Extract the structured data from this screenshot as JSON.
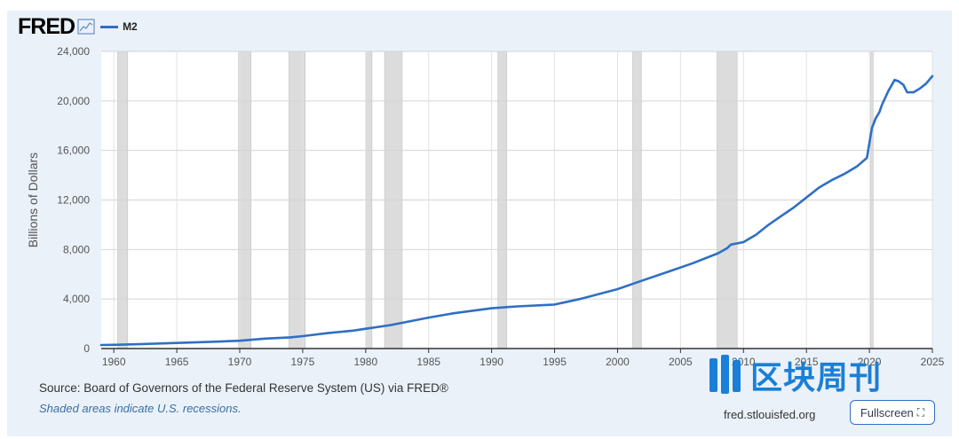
{
  "header": {
    "brand": "FRED",
    "chart_icon": "line-chart-icon",
    "legend_label": "M2",
    "legend_color": "#2f6fc4"
  },
  "footer": {
    "source": "Source: Board of Governors of the Federal Reserve System (US) via FRED®",
    "note": "Shaded areas indicate U.S. recessions.",
    "site": "fred.stlouisfed.org",
    "fullscreen_label": "Fullscreen",
    "fullscreen_icon": "fullscreen-icon"
  },
  "watermark": {
    "text": "区块周刊",
    "icon": "watermark-logo-icon",
    "color": "#1a7fd6"
  },
  "chart_data": {
    "type": "line",
    "title": "",
    "xlabel": "",
    "ylabel": "Billions of Dollars",
    "xlim": [
      1959,
      2025
    ],
    "ylim": [
      0,
      24000
    ],
    "grid": true,
    "x_ticks": [
      1960,
      1965,
      1970,
      1975,
      1980,
      1985,
      1990,
      1995,
      2000,
      2005,
      2010,
      2015,
      2020,
      2025
    ],
    "y_ticks": [
      0,
      4000,
      8000,
      12000,
      16000,
      20000,
      24000
    ],
    "y_tick_labels": [
      "0",
      "4,000",
      "8,000",
      "12,000",
      "16,000",
      "20,000",
      "24,000"
    ],
    "recessions": [
      [
        1960.3,
        1961.1
      ],
      [
        1969.9,
        1970.9
      ],
      [
        1973.9,
        1975.2
      ],
      [
        1980.0,
        1980.5
      ],
      [
        1981.5,
        1982.9
      ],
      [
        1990.5,
        1991.2
      ],
      [
        2001.2,
        2001.9
      ],
      [
        2007.9,
        2009.5
      ],
      [
        2020.1,
        2020.3
      ]
    ],
    "series": [
      {
        "name": "M2",
        "color": "#2f6fc4",
        "x": [
          1959,
          1960,
          1962,
          1965,
          1968,
          1970,
          1972,
          1974,
          1975,
          1977,
          1979,
          1980,
          1982,
          1985,
          1987,
          1990,
          1992,
          1995,
          1997,
          2000,
          2002,
          2004,
          2006,
          2008,
          2008.7,
          2009,
          2010,
          2011,
          2012,
          2013,
          2014,
          2015,
          2016,
          2017,
          2018,
          2019,
          2019.8,
          2020.2,
          2020.5,
          2020.8,
          2021,
          2021.5,
          2022,
          2022.3,
          2022.7,
          2023,
          2023.5,
          2024,
          2024.5,
          2025
        ],
        "values": [
          290,
          300,
          350,
          450,
          550,
          630,
          800,
          900,
          1000,
          1250,
          1450,
          1600,
          1900,
          2500,
          2850,
          3250,
          3400,
          3550,
          4000,
          4800,
          5500,
          6200,
          6900,
          7700,
          8100,
          8400,
          8600,
          9200,
          10000,
          10700,
          11400,
          12200,
          13000,
          13600,
          14100,
          14700,
          15400,
          17800,
          18600,
          19100,
          19700,
          20800,
          21700,
          21600,
          21300,
          20700,
          20700,
          21000,
          21400,
          22000
        ]
      }
    ]
  }
}
